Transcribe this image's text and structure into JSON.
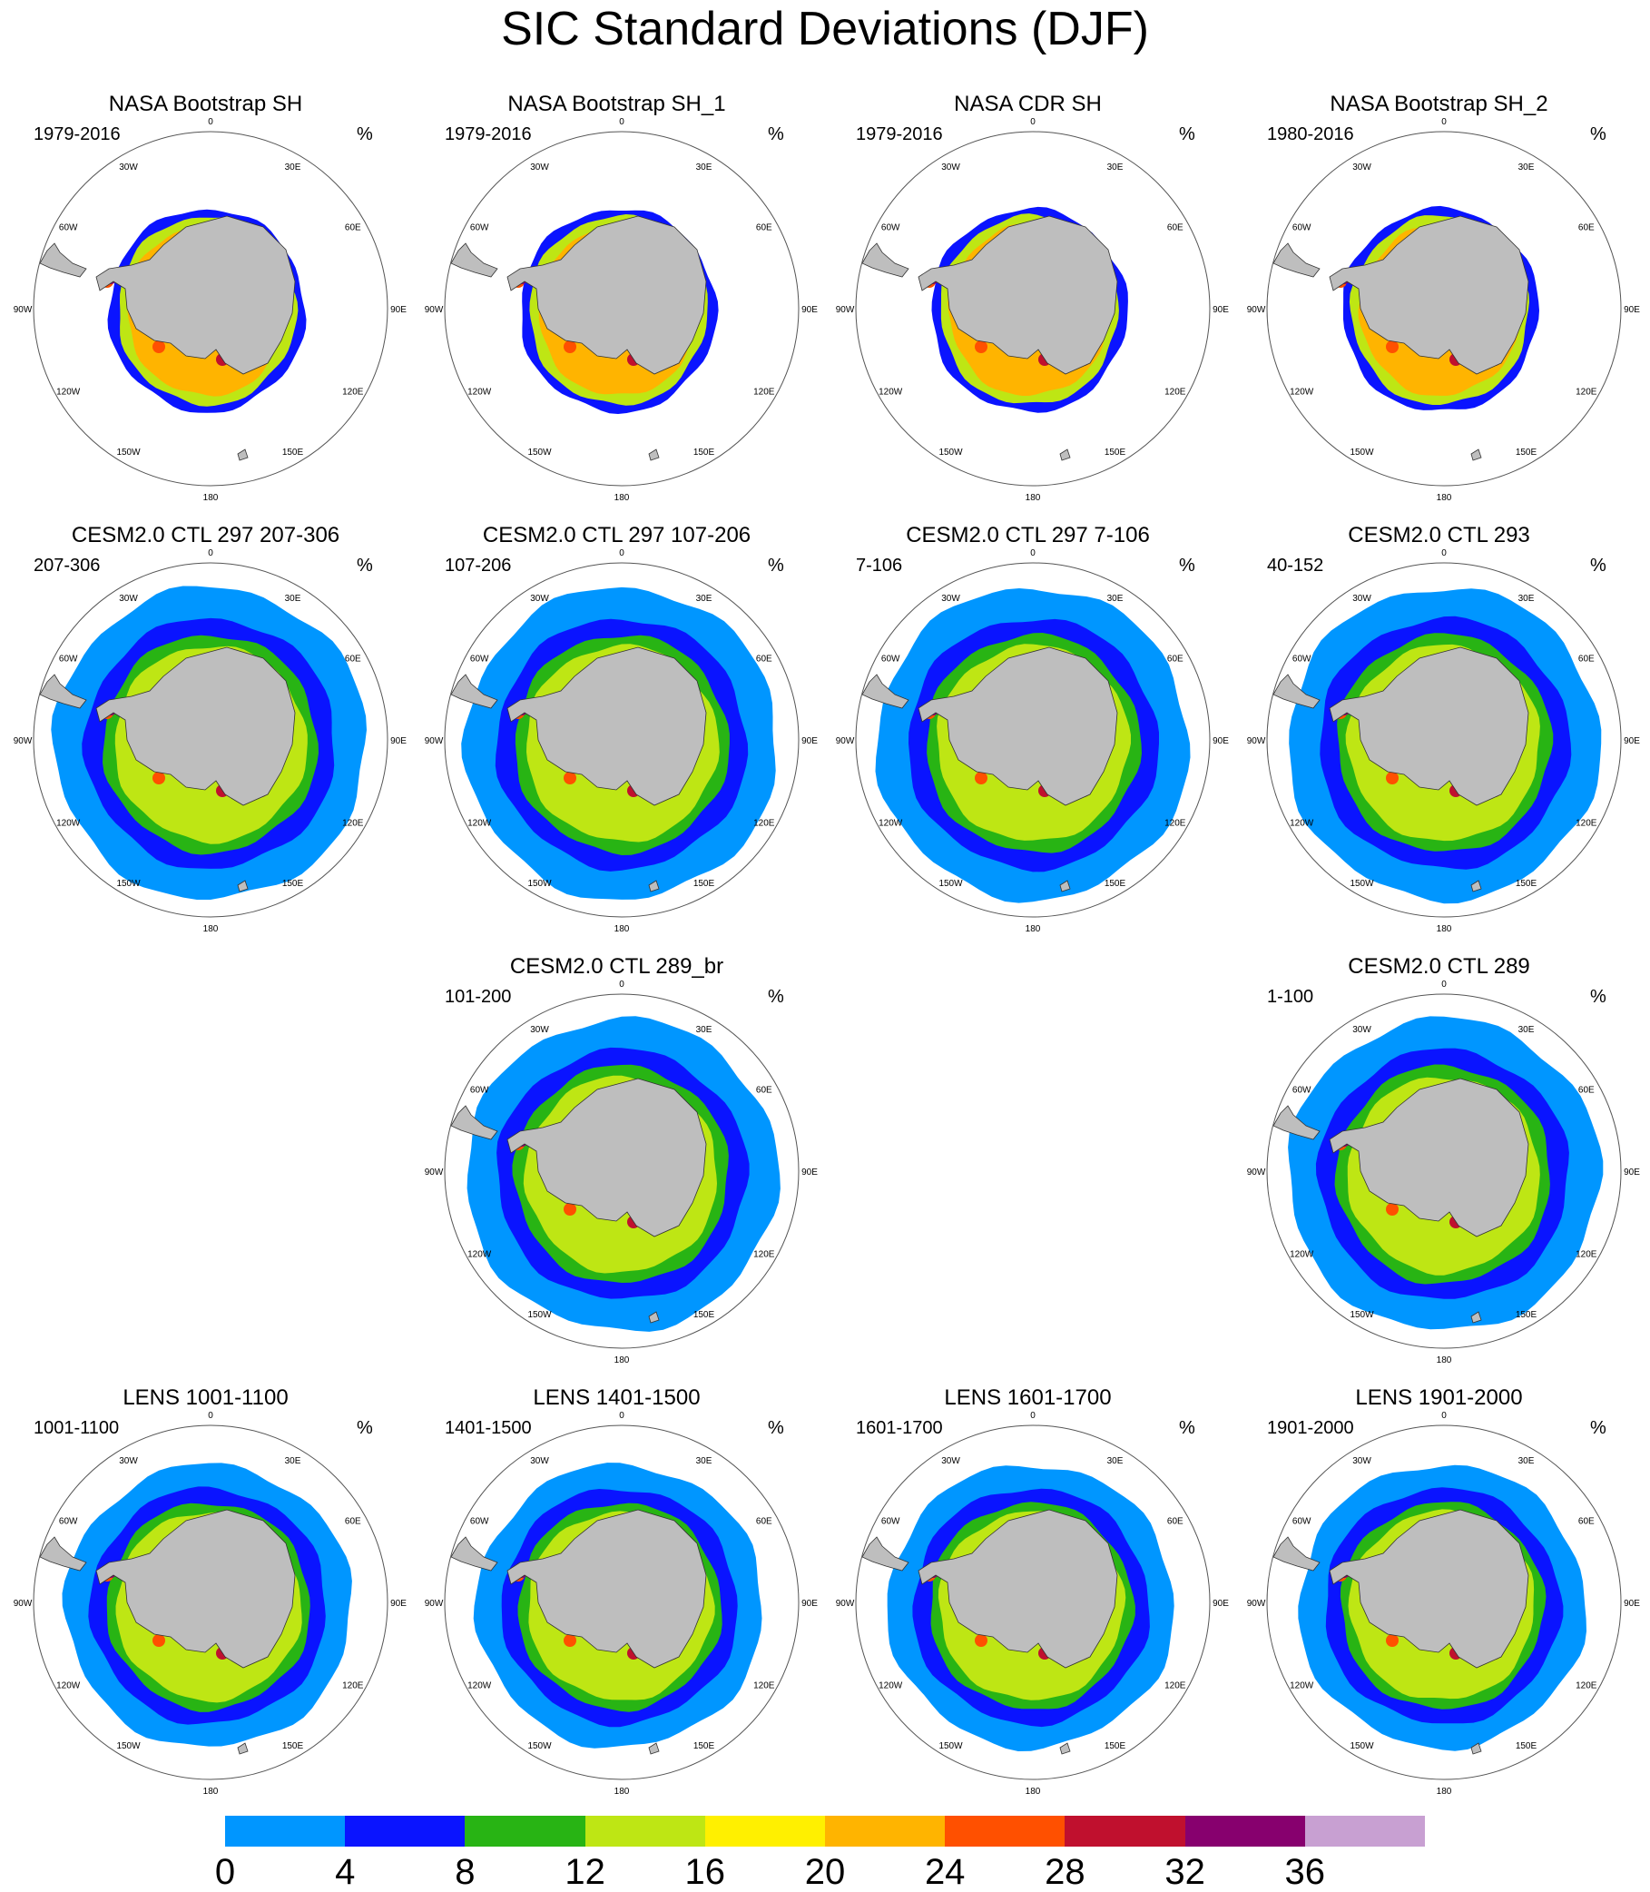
{
  "title": "SIC Standard Deviations (DJF)",
  "unit": "%",
  "lon_labels": [
    "0",
    "30E",
    "60E",
    "90E",
    "120E",
    "150E",
    "180",
    "150W",
    "120W",
    "90W",
    "60W",
    "30W"
  ],
  "colorbar": {
    "colors": [
      "#0096ff",
      "#0a14ff",
      "#28b414",
      "#bee614",
      "#fff000",
      "#ffb400",
      "#ff5000",
      "#c0102e",
      "#87006e",
      "#c8a0d2"
    ],
    "labels": [
      "0",
      "4",
      "8",
      "12",
      "16",
      "20",
      "24",
      "28",
      "32",
      "36"
    ]
  },
  "panels": [
    {
      "title": "NASA Bootstrap SH",
      "years": "1979-2016",
      "kind": "obs"
    },
    {
      "title": "NASA Bootstrap SH_1",
      "years": "1979-2016",
      "kind": "obs"
    },
    {
      "title": "NASA CDR SH",
      "years": "1979-2016",
      "kind": "obs"
    },
    {
      "title": "NASA Bootstrap SH_2",
      "years": "1980-2016",
      "kind": "obs"
    },
    {
      "title": "CESM2.0 CTL 297 207-306",
      "years": "207-306",
      "kind": "model"
    },
    {
      "title": "CESM2.0 CTL 297 107-206",
      "years": "107-206",
      "kind": "model"
    },
    {
      "title": "CESM2.0 CTL 297 7-106",
      "years": "7-106",
      "kind": "model"
    },
    {
      "title": "CESM2.0 CTL 293",
      "years": "40-152",
      "kind": "model"
    },
    {
      "title": "CESM2.0 CTL 289_br",
      "years": "101-200",
      "kind": "model"
    },
    {
      "title": "CESM2.0 CTL 289",
      "years": "1-100",
      "kind": "model"
    },
    {
      "title": "LENS 1001-1100",
      "years": "1001-1100",
      "kind": "lens"
    },
    {
      "title": "LENS 1401-1500",
      "years": "1401-1500",
      "kind": "lens"
    },
    {
      "title": "LENS 1601-1700",
      "years": "1601-1700",
      "kind": "lens"
    },
    {
      "title": "LENS 1901-2000",
      "years": "1901-2000",
      "kind": "lens"
    }
  ]
}
